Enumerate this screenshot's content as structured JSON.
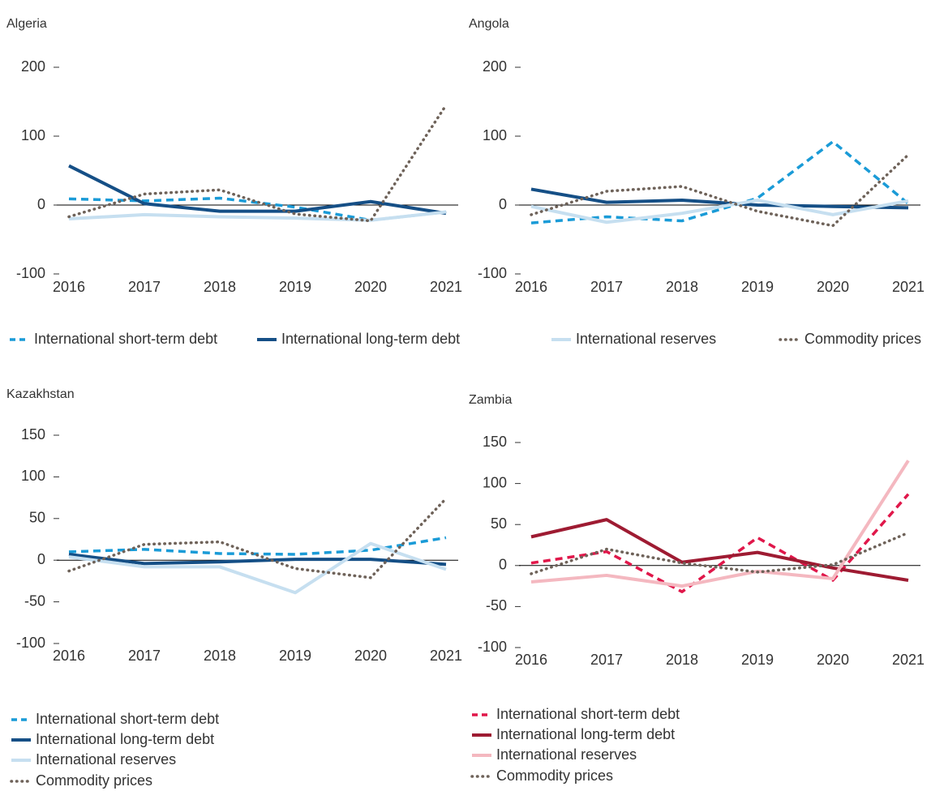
{
  "chart_data": [
    {
      "type": "line",
      "title": "Algeria",
      "categories": [
        "2016",
        "2017",
        "2018",
        "2019",
        "2020",
        "2021"
      ],
      "ylim": [
        -100,
        200
      ],
      "yticks": [
        -100,
        0,
        100,
        200
      ],
      "series": [
        {
          "name": "International short-term debt",
          "color": "#1a9bd7",
          "linestyle": "dashed",
          "values": [
            9,
            6,
            10,
            -3,
            -22,
            -10
          ]
        },
        {
          "name": "International long-term debt",
          "color": "#154f86",
          "linestyle": "solid",
          "values": [
            57,
            2,
            -9,
            -9,
            5,
            -12
          ]
        },
        {
          "name": "International reserves",
          "color": "#c6dff0",
          "linestyle": "solid",
          "values": [
            -20,
            -14,
            -17,
            -19,
            -22,
            -10
          ]
        },
        {
          "name": "Commodity prices",
          "color": "#6e6259",
          "linestyle": "dotted",
          "values": [
            -17,
            16,
            22,
            -13,
            -23,
            145
          ]
        }
      ]
    },
    {
      "type": "line",
      "title": "Angola",
      "categories": [
        "2016",
        "2017",
        "2018",
        "2019",
        "2020",
        "2021"
      ],
      "ylim": [
        -100,
        200
      ],
      "yticks": [
        -100,
        0,
        100,
        200
      ],
      "series": [
        {
          "color": "#1a9bd7",
          "linestyle": "dashed",
          "values": [
            -26,
            -17,
            -23,
            10,
            92,
            2
          ]
        },
        {
          "color": "#154f86",
          "linestyle": "solid",
          "values": [
            23,
            4,
            7,
            0,
            -2,
            -4
          ]
        },
        {
          "color": "#c6dff0",
          "linestyle": "solid",
          "values": [
            -2,
            -25,
            -12,
            7,
            -14,
            6
          ]
        },
        {
          "color": "#6e6259",
          "linestyle": "dotted",
          "values": [
            -14,
            20,
            27,
            -9,
            -30,
            73
          ]
        }
      ]
    },
    {
      "type": "line",
      "title": "Kazakhstan",
      "categories": [
        "2016",
        "2017",
        "2018",
        "2019",
        "2020",
        "2021"
      ],
      "ylim": [
        -100,
        150
      ],
      "yticks": [
        -100,
        -50,
        0,
        50,
        100,
        150
      ],
      "series": [
        {
          "name": "International short-term debt",
          "color": "#1a9bd7",
          "linestyle": "dashed",
          "values": [
            10,
            13,
            8,
            7,
            12,
            27
          ]
        },
        {
          "name": "International long-term debt",
          "color": "#154f86",
          "linestyle": "solid",
          "values": [
            7,
            -4,
            -2,
            1,
            1,
            -5
          ]
        },
        {
          "name": "International reserves",
          "color": "#c6dff0",
          "linestyle": "solid",
          "values": [
            4,
            -8,
            -8,
            -39,
            20,
            -11
          ]
        },
        {
          "name": "Commodity prices",
          "color": "#6e6259",
          "linestyle": "dotted",
          "values": [
            -13,
            19,
            22,
            -10,
            -21,
            74
          ]
        }
      ]
    },
    {
      "type": "line",
      "title": "Zambia",
      "categories": [
        "2016",
        "2017",
        "2018",
        "2019",
        "2020",
        "2021"
      ],
      "ylim": [
        -100,
        150
      ],
      "yticks": [
        -100,
        -50,
        0,
        50,
        100,
        150
      ],
      "series": [
        {
          "name": "International short-term debt",
          "color": "#e0174a",
          "linestyle": "dashed",
          "values": [
            3,
            17,
            -32,
            34,
            -18,
            87
          ]
        },
        {
          "name": "International long-term debt",
          "color": "#9e1b32",
          "linestyle": "solid",
          "values": [
            35,
            56,
            4,
            16,
            -3,
            -18
          ]
        },
        {
          "name": "International reserves",
          "color": "#f4b8c0",
          "linestyle": "solid",
          "values": [
            -20,
            -12,
            -25,
            -7,
            -16,
            128
          ]
        },
        {
          "name": "Commodity prices",
          "color": "#6e6259",
          "linestyle": "dotted",
          "values": [
            -10,
            20,
            3,
            -8,
            1,
            40
          ]
        }
      ]
    }
  ]
}
